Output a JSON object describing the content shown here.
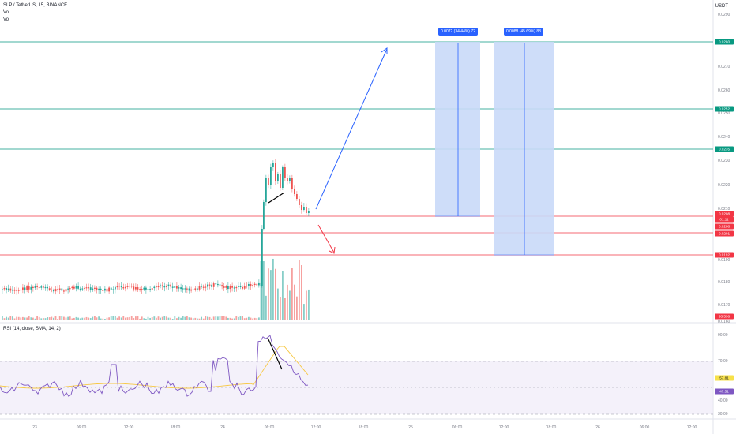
{
  "header": {
    "symbol_line": "SLP / TetherUS, 15, BINANCE",
    "vol_line_1": "Vol",
    "vol_line_2": "Vol"
  },
  "currency_label": "USDT",
  "price_axis_ticks": [
    "0.0290",
    "0.0270",
    "0.0260",
    "0.0250",
    "0.0240",
    "0.0230",
    "0.0220",
    "0.0210",
    "0.0190",
    "0.0180",
    "0.0170",
    "0.0160"
  ],
  "price_labels": [
    {
      "text": "0.0280",
      "color": "#089981"
    },
    {
      "text": "0.0252",
      "color": "#089981"
    },
    {
      "text": "0.0235",
      "color": "#089981"
    },
    {
      "text": "0.0208",
      "color": "#f23645"
    },
    {
      "text": "01:11",
      "color": "#f23645"
    },
    {
      "text": "0.0208",
      "color": "#f23645"
    },
    {
      "text": "0.0201",
      "color": "#f23645"
    },
    {
      "text": "0.0192",
      "color": "#f23645"
    },
    {
      "text": "93.536",
      "color": "#f23645"
    }
  ],
  "measure_boxes": [
    {
      "text": "0.0072 (34.44%) 72"
    },
    {
      "text": "0.0088 (45.69%) 88"
    }
  ],
  "rsi": {
    "label": "RSI (14, close, SMA, 14, 2)",
    "ticks": [
      "90.00",
      "70.00",
      "40.00",
      "30.00"
    ],
    "value_rsi": "47.51",
    "value_sma": "57.81",
    "rsi_color": "#7e57c2",
    "sma_color": "#f7c843"
  },
  "time_axis": [
    "23",
    "06:00",
    "12:00",
    "18:00",
    "24",
    "06:00",
    "12:00",
    "18:00",
    "25",
    "06:00",
    "12:00",
    "18:00",
    "26",
    "06:00",
    "12:00"
  ],
  "colors": {
    "up": "#26a69a",
    "down": "#ef5350",
    "green_line": "#089981",
    "red_line": "#f23645",
    "accent": "#2962ff",
    "measure_fill": "#c9d9f8"
  }
}
